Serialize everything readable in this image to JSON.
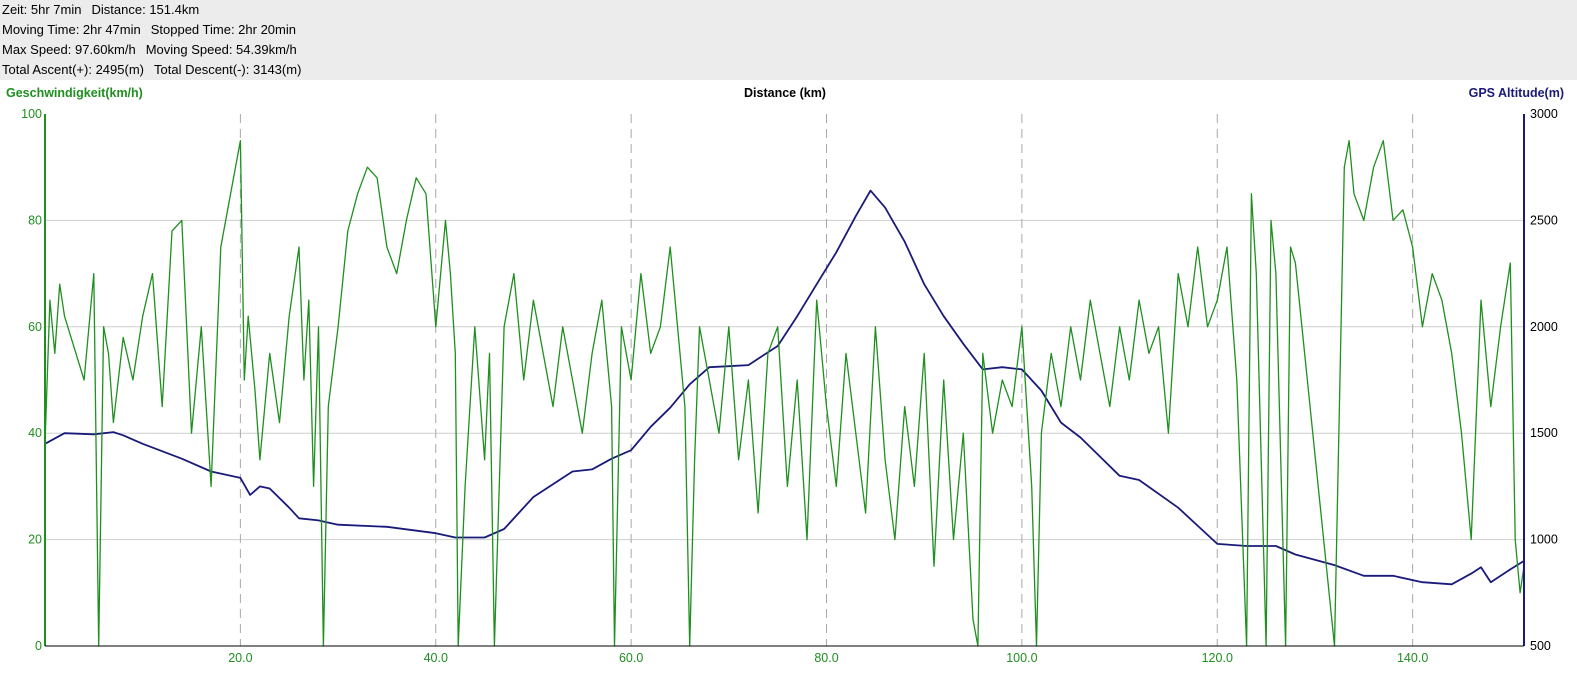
{
  "stats": [
    [
      {
        "label": "Zeit:",
        "value": "5hr 7min"
      },
      {
        "label": "Distance:",
        "value": "151.4km"
      }
    ],
    [
      {
        "label": "Moving Time:",
        "value": "2hr 47min"
      },
      {
        "label": "Stopped Time:",
        "value": "2hr 20min"
      }
    ],
    [
      {
        "label": "Max Speed:",
        "value": "97.60km/h"
      },
      {
        "label": "Moving Speed:",
        "value": "54.39km/h"
      }
    ],
    [
      {
        "label": "Total Ascent(+):",
        "value": "2495(m)"
      },
      {
        "label": "Total Descent(-):",
        "value": "3143(m)"
      }
    ]
  ],
  "colors": {
    "speed": "#1f8f1f",
    "altitude": "#1a1a7a",
    "grid": "#cfcfcf",
    "vgrid": "#a8a8a8",
    "stats_bg": "#ececec"
  },
  "chart_data": {
    "type": "line",
    "title": "",
    "xlabel": "Distance (km)",
    "ylabel_left": "Geschwindigkeit(km/h)",
    "ylabel_right": "GPS Altitude(m)",
    "xlim": [
      0,
      151.4
    ],
    "ylim_left": [
      0,
      100
    ],
    "ylim_right": [
      500,
      3000
    ],
    "x_ticks": [
      "20.0",
      "40.0",
      "60.0",
      "80.0",
      "100.0",
      "120.0",
      "140.0"
    ],
    "y_ticks_left": [
      "0",
      "20",
      "40",
      "60",
      "80",
      "100"
    ],
    "y_ticks_right": [
      "500",
      "1000",
      "1500",
      "2000",
      "2500",
      "3000"
    ],
    "grid": true,
    "series": [
      {
        "name": "GPS Altitude(m)",
        "axis": "right",
        "x": [
          0,
          2,
          5,
          7,
          8,
          10,
          14,
          17,
          20,
          21,
          22,
          23,
          25,
          26,
          28,
          29,
          30,
          35,
          40,
          42,
          45,
          47,
          50,
          54,
          56,
          58,
          60,
          62,
          64,
          66,
          68,
          70,
          72,
          75,
          77,
          79,
          81,
          83,
          84.5,
          86,
          88,
          90,
          92,
          94,
          96,
          98,
          100,
          102,
          104,
          106,
          108,
          110,
          112,
          116,
          120,
          123,
          126,
          128,
          132,
          135,
          138,
          141,
          144,
          146,
          147,
          148,
          150,
          151.4
        ],
        "values": [
          1450,
          1500,
          1495,
          1505,
          1490,
          1450,
          1380,
          1320,
          1290,
          1210,
          1250,
          1240,
          1150,
          1100,
          1090,
          1080,
          1070,
          1060,
          1030,
          1010,
          1010,
          1050,
          1200,
          1320,
          1330,
          1380,
          1420,
          1530,
          1620,
          1730,
          1810,
          1815,
          1820,
          1910,
          2050,
          2200,
          2350,
          2520,
          2640,
          2560,
          2400,
          2200,
          2050,
          1920,
          1800,
          1810,
          1800,
          1700,
          1550,
          1480,
          1390,
          1300,
          1280,
          1150,
          980,
          970,
          970,
          930,
          880,
          830,
          830,
          800,
          790,
          840,
          870,
          800,
          860,
          900
        ]
      },
      {
        "name": "Geschwindigkeit(km/h)",
        "axis": "left",
        "x": [
          0,
          0.5,
          1,
          1.5,
          2,
          3,
          4,
          5,
          5.5,
          6,
          6.5,
          7,
          8,
          9,
          10,
          11,
          12,
          13,
          14,
          15,
          16,
          17,
          18,
          19,
          20,
          20.4,
          20.8,
          21.5,
          22,
          23,
          24,
          25,
          26,
          26.5,
          27,
          27.5,
          28,
          28.5,
          29,
          30,
          31,
          32,
          33,
          34,
          35,
          36,
          37,
          38,
          39,
          40,
          41,
          41.5,
          42,
          42.3,
          43,
          44,
          45,
          45.5,
          46,
          47,
          48,
          49,
          50,
          51,
          52,
          53,
          54,
          55,
          56,
          57,
          58,
          58.3,
          59,
          60,
          61,
          62,
          63,
          64,
          65,
          65.5,
          66,
          66.5,
          67,
          68,
          69,
          70,
          71,
          72,
          73,
          74,
          75,
          76,
          77,
          78,
          79,
          80,
          81,
          82,
          83,
          84,
          85,
          86,
          87,
          88,
          89,
          90,
          91,
          92,
          93,
          94,
          95,
          95.5,
          96,
          97,
          98,
          99,
          100,
          101,
          101.5,
          102,
          103,
          104,
          105,
          106,
          107,
          108,
          109,
          110,
          111,
          112,
          113,
          114,
          115,
          116,
          117,
          118,
          119,
          120,
          121,
          122,
          123,
          123.5,
          124,
          125,
          125.5,
          126,
          127,
          127.5,
          128,
          132,
          133,
          133.5,
          134,
          135,
          136,
          137,
          138,
          139,
          140,
          141,
          142,
          143,
          144,
          145,
          146,
          147,
          148,
          149,
          150,
          150.5,
          151,
          151.4
        ],
        "values": [
          38,
          65,
          55,
          68,
          62,
          56,
          50,
          70,
          0,
          60,
          55,
          42,
          58,
          50,
          62,
          70,
          45,
          78,
          80,
          40,
          60,
          30,
          75,
          85,
          95,
          50,
          62,
          48,
          35,
          55,
          42,
          62,
          75,
          50,
          65,
          30,
          60,
          0,
          45,
          60,
          78,
          85,
          90,
          88,
          75,
          70,
          80,
          88,
          85,
          60,
          80,
          70,
          55,
          0,
          30,
          60,
          35,
          55,
          0,
          60,
          70,
          50,
          65,
          55,
          45,
          60,
          50,
          40,
          55,
          65,
          45,
          0,
          60,
          50,
          70,
          55,
          60,
          75,
          55,
          45,
          0,
          35,
          60,
          50,
          40,
          60,
          35,
          50,
          25,
          55,
          60,
          30,
          50,
          20,
          65,
          45,
          30,
          55,
          40,
          25,
          60,
          35,
          20,
          45,
          30,
          55,
          15,
          50,
          20,
          40,
          5,
          0,
          55,
          40,
          50,
          45,
          60,
          30,
          0,
          40,
          55,
          45,
          60,
          50,
          65,
          55,
          45,
          60,
          50,
          65,
          55,
          60,
          40,
          70,
          60,
          75,
          60,
          65,
          75,
          50,
          0,
          85,
          70,
          0,
          80,
          70,
          0,
          75,
          72,
          0,
          90,
          95,
          85,
          80,
          90,
          95,
          80,
          82,
          75,
          60,
          70,
          65,
          55,
          40,
          20,
          65,
          45,
          60,
          72,
          20,
          10,
          15
        ]
      }
    ]
  }
}
